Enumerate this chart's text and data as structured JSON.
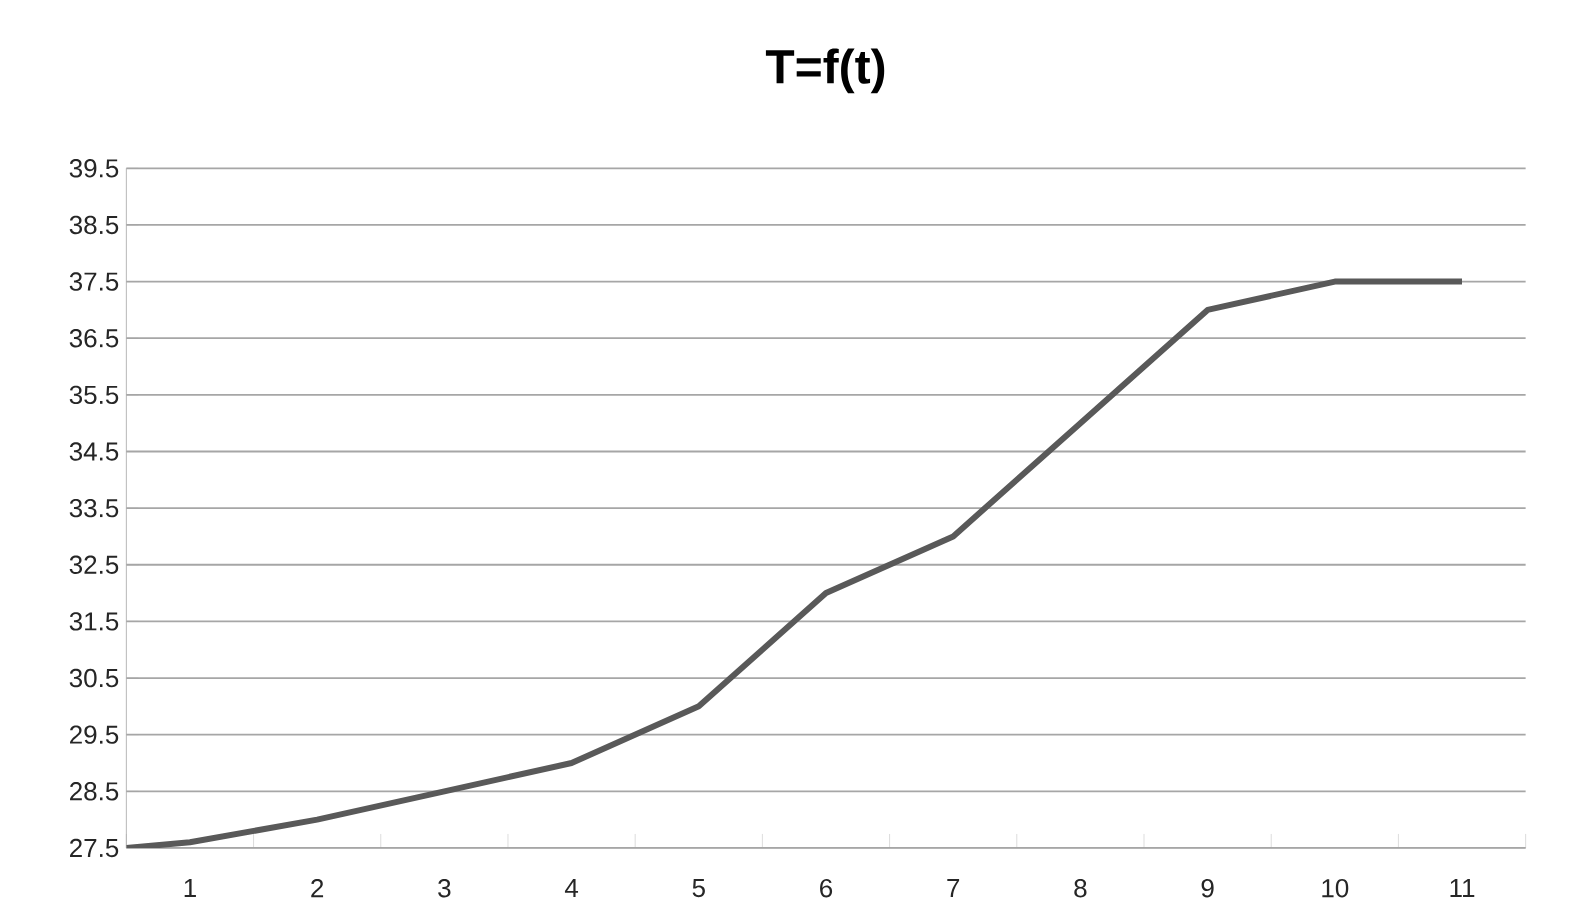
{
  "chart_data": {
    "type": "line",
    "title": "T=f(t)",
    "x": [
      0.5,
      1,
      2,
      3,
      4,
      5,
      6,
      7,
      8,
      9,
      10,
      11
    ],
    "series": [
      {
        "color": "#595959",
        "values": [
          27.5,
          27.6,
          28.0,
          28.5,
          29.0,
          30.0,
          32.0,
          33.0,
          35.0,
          37.0,
          37.5,
          37.5
        ]
      }
    ],
    "xlim": [
      0.5,
      11.5
    ],
    "xticks": [
      1,
      2,
      3,
      4,
      5,
      6,
      7,
      8,
      9,
      10,
      11
    ],
    "ylim": [
      27.5,
      39.5
    ],
    "yticks": [
      27.5,
      28.5,
      29.5,
      30.5,
      31.5,
      32.5,
      33.5,
      34.5,
      35.5,
      36.5,
      37.5,
      38.5,
      39.5
    ],
    "grid": "y",
    "marker": "none",
    "line_style": "solid"
  }
}
